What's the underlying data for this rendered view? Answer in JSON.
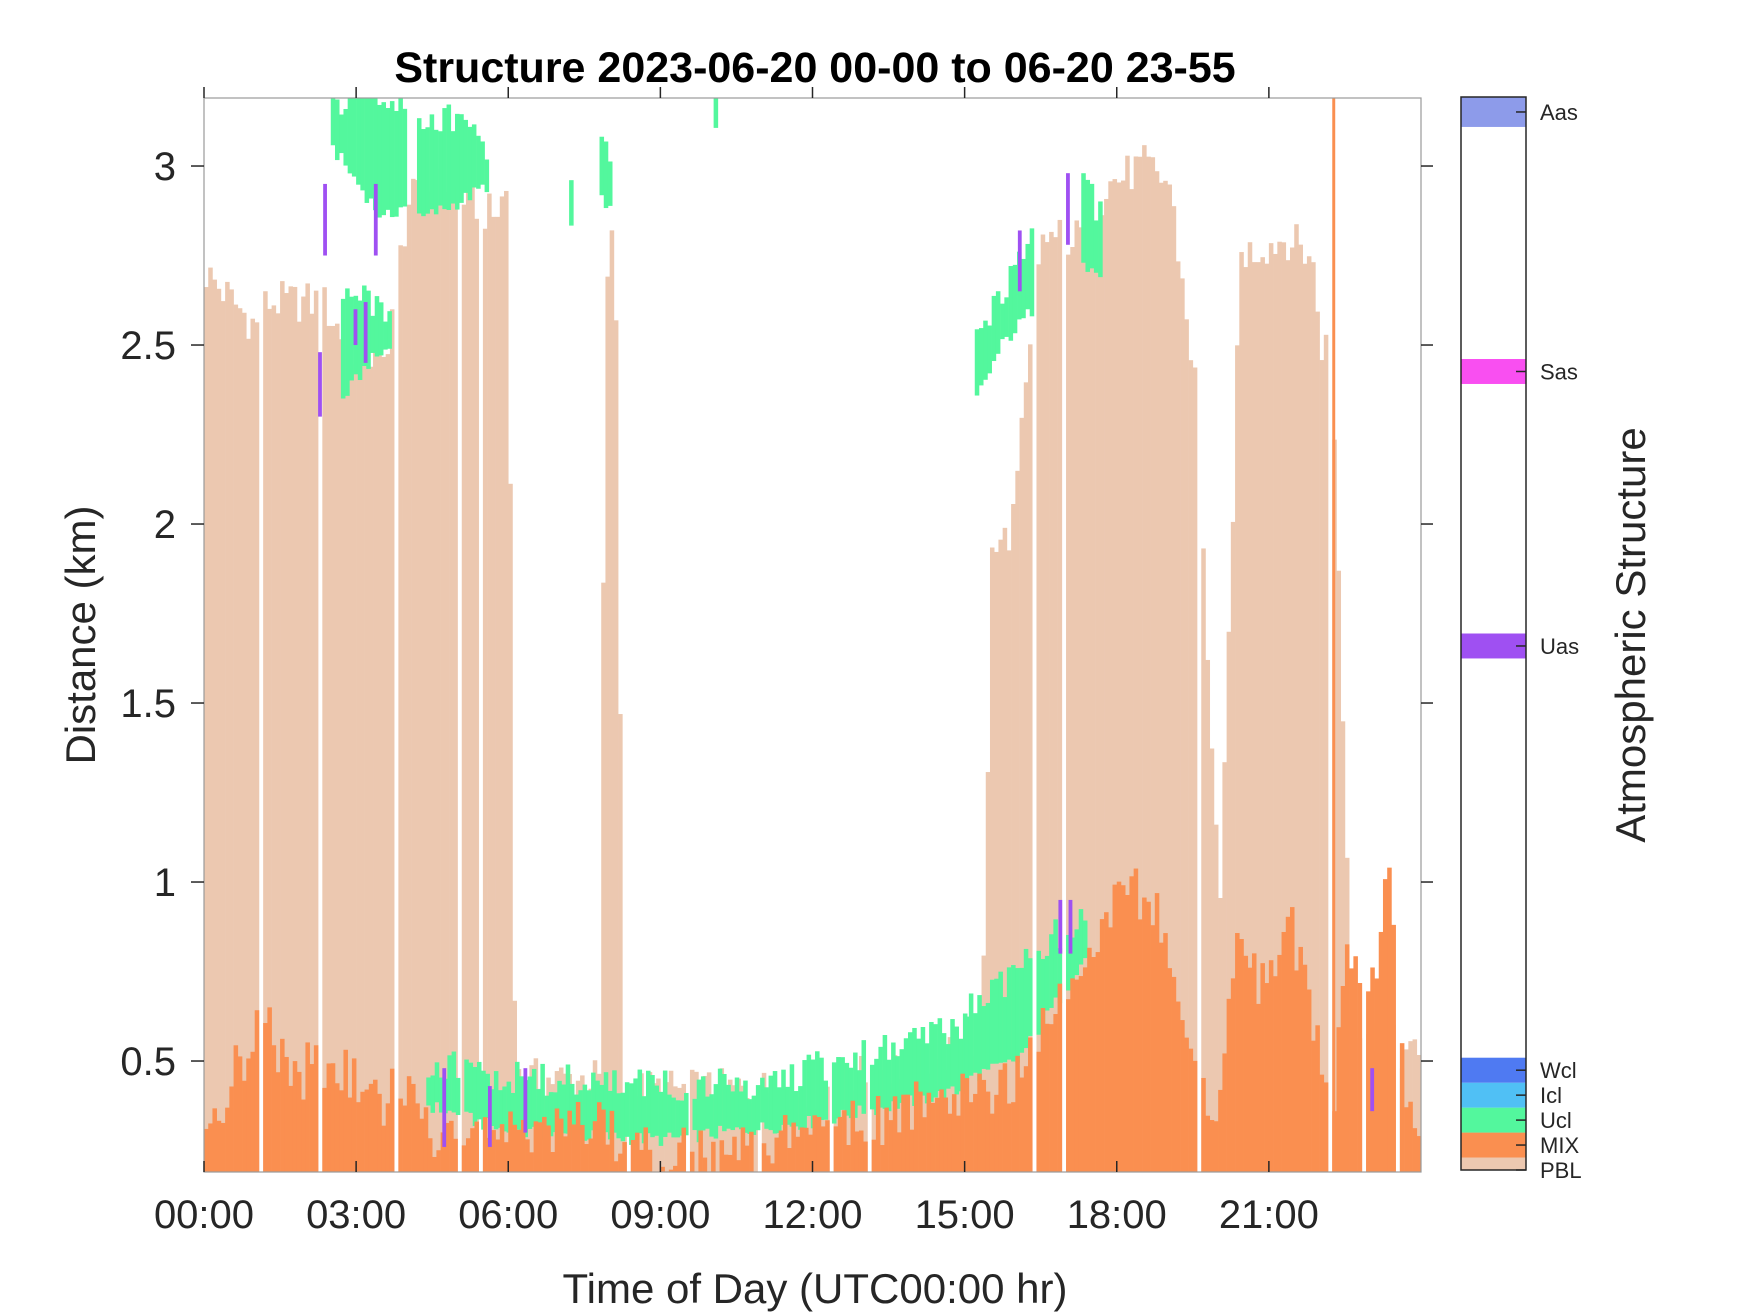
{
  "chart_data": {
    "type": "heatmap",
    "title": "Structure 2023-06-20 00-00 to 06-20 23-55",
    "xlabel": "Time of Day (UTC00:00 hr)",
    "ylabel": "Distance (km)",
    "xlim": [
      0,
      24
    ],
    "ylim": [
      0.19,
      3.19
    ],
    "x_ticks": [
      "00:00",
      "03:00",
      "06:00",
      "09:00",
      "12:00",
      "15:00",
      "18:00",
      "21:00"
    ],
    "x_tick_values": [
      0,
      3,
      6,
      9,
      12,
      15,
      18,
      21
    ],
    "y_ticks": [
      "0.5",
      "1",
      "1.5",
      "2",
      "2.5",
      "3"
    ],
    "y_tick_values": [
      0.5,
      1,
      1.5,
      2,
      2.5,
      3
    ],
    "grid": false,
    "time_step_minutes": 5,
    "colorbar": {
      "label": "Atmospheric Structure",
      "classes": [
        {
          "name": "PBL",
          "color": "#ecc8b0"
        },
        {
          "name": "MIX",
          "color": "#fa8f50"
        },
        {
          "name": "Ucl",
          "color": "#53f79d"
        },
        {
          "name": "Icl",
          "color": "#50c0f5"
        },
        {
          "name": "Wcl",
          "color": "#4f7af2"
        },
        {
          "name": "Uas",
          "color": "#9f50f2"
        },
        {
          "name": "Sas",
          "color": "#f94ff1"
        },
        {
          "name": "Aas",
          "color": "#8d9bea"
        }
      ]
    },
    "series": [
      {
        "name": "PBL",
        "profile": [
          [
            0.0,
            2.7
          ],
          [
            1.0,
            2.55
          ],
          [
            1.2,
            2.62
          ],
          [
            2.3,
            2.62
          ],
          [
            2.8,
            2.5
          ],
          [
            3.5,
            2.45
          ],
          [
            4.0,
            2.9
          ],
          [
            4.7,
            2.95
          ],
          [
            5.3,
            2.9
          ],
          [
            5.7,
            2.85
          ],
          [
            5.95,
            2.95
          ],
          [
            6.1,
            0.45
          ],
          [
            7.8,
            0.45
          ],
          [
            7.85,
            2.5
          ],
          [
            8.05,
            2.95
          ],
          [
            8.25,
            0.42
          ],
          [
            12.0,
            0.42
          ],
          [
            14.0,
            0.5
          ],
          [
            15.3,
            0.55
          ],
          [
            15.5,
            1.9
          ],
          [
            15.9,
            2.0
          ],
          [
            16.5,
            2.8
          ],
          [
            17.2,
            2.8
          ],
          [
            17.8,
            2.95
          ],
          [
            18.5,
            3.0
          ],
          [
            19.0,
            2.95
          ],
          [
            19.5,
            2.4
          ],
          [
            20.0,
            0.9
          ],
          [
            20.4,
            2.75
          ],
          [
            21.3,
            2.8
          ],
          [
            21.8,
            2.75
          ],
          [
            22.0,
            2.5
          ],
          [
            22.2,
            2.5
          ],
          [
            22.6,
            0.6
          ],
          [
            24.0,
            0.5
          ]
        ],
        "gaps": [
          [
            0.35,
            0.4
          ],
          [
            1.05,
            1.15
          ],
          [
            2.2,
            2.3
          ],
          [
            3.75,
            3.82
          ],
          [
            4.28,
            4.33
          ],
          [
            5.0,
            5.05
          ],
          [
            5.4,
            5.45
          ],
          [
            8.3,
            8.35
          ],
          [
            9.5,
            9.55
          ],
          [
            10.9,
            10.95
          ],
          [
            12.3,
            12.35
          ],
          [
            13.05,
            13.1
          ],
          [
            15.2,
            15.25
          ],
          [
            16.3,
            16.35
          ],
          [
            16.9,
            16.95
          ],
          [
            19.55,
            19.6
          ],
          [
            21.1,
            21.15
          ],
          [
            22.1,
            22.18
          ],
          [
            22.8,
            22.85
          ],
          [
            23.5,
            23.55
          ]
        ]
      },
      {
        "name": "MIX",
        "profile": [
          [
            0.0,
            0.3
          ],
          [
            0.5,
            0.45
          ],
          [
            1.2,
            0.62
          ],
          [
            1.6,
            0.45
          ],
          [
            2.5,
            0.5
          ],
          [
            3.3,
            0.38
          ],
          [
            4.0,
            0.42
          ],
          [
            4.5,
            0.3
          ],
          [
            5.5,
            0.35
          ],
          [
            6.2,
            0.3
          ],
          [
            7.5,
            0.32
          ],
          [
            8.5,
            0.26
          ],
          [
            10.0,
            0.22
          ],
          [
            11.0,
            0.27
          ],
          [
            12.5,
            0.32
          ],
          [
            13.5,
            0.35
          ],
          [
            14.5,
            0.38
          ],
          [
            15.0,
            0.4
          ],
          [
            15.8,
            0.42
          ],
          [
            16.2,
            0.55
          ],
          [
            17.0,
            0.75
          ],
          [
            18.0,
            0.95
          ],
          [
            18.6,
            0.98
          ],
          [
            19.2,
            0.7
          ],
          [
            19.6,
            0.4
          ],
          [
            20.0,
            0.4
          ],
          [
            20.3,
            0.85
          ],
          [
            20.9,
            0.7
          ],
          [
            21.3,
            0.9
          ],
          [
            21.7,
            0.75
          ],
          [
            22.2,
            0.3
          ],
          [
            22.5,
            0.8
          ],
          [
            23.0,
            0.7
          ],
          [
            23.3,
            1.05
          ],
          [
            23.6,
            0.5
          ],
          [
            23.8,
            0.3
          ],
          [
            24.0,
            0.28
          ]
        ],
        "spike": {
          "x": 22.25,
          "y_from": 0.19,
          "y_to": 3.19
        }
      },
      {
        "name": "Ucl",
        "bands": [
          {
            "x_from": 4.3,
            "x_to": 15.0,
            "bottom": [
              [
                4.3,
                0.38
              ],
              [
                6.0,
                0.3
              ],
              [
                9.0,
                0.28
              ],
              [
                12.0,
                0.33
              ],
              [
                15.0,
                0.42
              ]
            ],
            "top": [
              [
                4.3,
                0.5
              ],
              [
                6.0,
                0.45
              ],
              [
                9.0,
                0.43
              ],
              [
                11.0,
                0.43
              ],
              [
                12.5,
                0.5
              ],
              [
                14.0,
                0.55
              ],
              [
                15.0,
                0.62
              ]
            ]
          },
          {
            "x_from": 15.0,
            "x_to": 17.4,
            "bottom": [
              [
                15.0,
                0.45
              ],
              [
                16.0,
                0.5
              ],
              [
                17.4,
                0.8
              ]
            ],
            "top": [
              [
                15.0,
                0.65
              ],
              [
                16.0,
                0.75
              ],
              [
                17.0,
                0.88
              ],
              [
                17.4,
                0.95
              ]
            ]
          },
          {
            "x_from": 15.2,
            "x_to": 16.3,
            "bottom": [
              [
                15.2,
                2.35
              ],
              [
                15.7,
                2.5
              ],
              [
                16.3,
                2.6
              ]
            ],
            "top": [
              [
                15.2,
                2.5
              ],
              [
                15.7,
                2.65
              ],
              [
                16.3,
                2.78
              ]
            ]
          },
          {
            "x_from": 17.3,
            "x_to": 17.65,
            "bottom": [
              [
                17.3,
                2.72
              ],
              [
                17.65,
                2.7
              ]
            ],
            "top": [
              [
                17.3,
                2.95
              ],
              [
                17.65,
                2.85
              ]
            ]
          },
          {
            "x_from": 2.7,
            "x_to": 3.7,
            "bottom": [
              [
                2.7,
                2.35
              ],
              [
                3.2,
                2.45
              ],
              [
                3.7,
                2.5
              ]
            ],
            "top": [
              [
                2.7,
                2.62
              ],
              [
                3.2,
                2.62
              ],
              [
                3.7,
                2.6
              ]
            ]
          },
          {
            "x_from": 2.5,
            "x_to": 4.0,
            "bottom": [
              [
                2.5,
                3.05
              ],
              [
                3.5,
                2.85
              ],
              [
                4.0,
                2.9
              ]
            ],
            "top": [
              [
                2.5,
                3.19
              ],
              [
                3.5,
                3.19
              ],
              [
                4.0,
                3.15
              ]
            ]
          },
          {
            "x_from": 4.2,
            "x_to": 5.6,
            "bottom": [
              [
                4.2,
                2.85
              ],
              [
                5.0,
                2.9
              ],
              [
                5.6,
                2.95
              ]
            ],
            "top": [
              [
                4.2,
                3.15
              ],
              [
                5.0,
                3.12
              ],
              [
                5.6,
                3.05
              ]
            ]
          },
          {
            "x_from": 7.8,
            "x_to": 8.0,
            "bottom": [
              [
                7.8,
                2.9
              ],
              [
                8.0,
                2.9
              ]
            ],
            "top": [
              [
                7.8,
                3.1
              ],
              [
                8.0,
                3.0
              ]
            ]
          },
          {
            "x_from": 7.2,
            "x_to": 7.25,
            "bottom": [
              [
                7.2,
                2.85
              ],
              [
                7.25,
                2.85
              ]
            ],
            "top": [
              [
                7.2,
                2.95
              ],
              [
                7.25,
                2.95
              ]
            ]
          },
          {
            "x_from": 10.05,
            "x_to": 10.1,
            "bottom": [
              [
                10.05,
                3.1
              ],
              [
                10.1,
                3.1
              ]
            ],
            "top": [
              [
                10.05,
                3.19
              ],
              [
                10.1,
                3.19
              ]
            ]
          }
        ]
      },
      {
        "name": "Uas",
        "segments": [
          [
            2.25,
            2.3,
            2.48
          ],
          [
            2.35,
            2.75,
            2.95
          ],
          [
            2.95,
            2.5,
            2.6
          ],
          [
            3.15,
            2.45,
            2.62
          ],
          [
            3.35,
            2.75,
            2.95
          ],
          [
            4.7,
            0.26,
            0.48
          ],
          [
            5.6,
            0.26,
            0.43
          ],
          [
            6.3,
            0.3,
            0.48
          ],
          [
            16.05,
            2.65,
            2.82
          ],
          [
            16.85,
            0.8,
            0.95
          ],
          [
            17.0,
            2.78,
            2.98
          ],
          [
            17.05,
            0.8,
            0.95
          ],
          [
            23.0,
            0.36,
            0.48
          ]
        ]
      }
    ]
  }
}
